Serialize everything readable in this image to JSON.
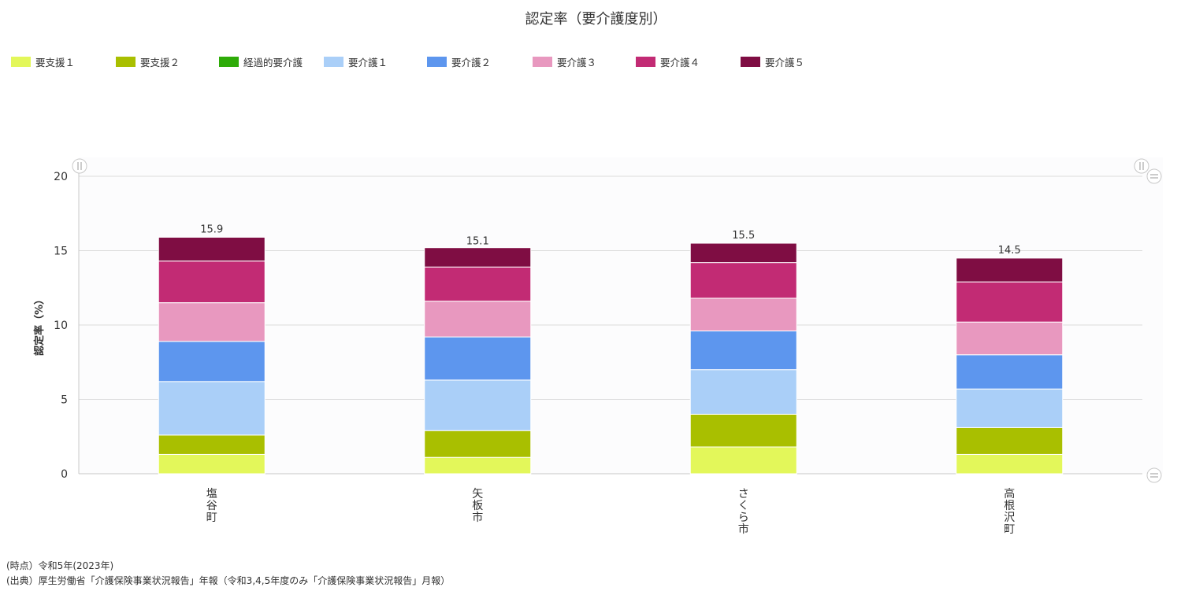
{
  "chart_data": {
    "type": "bar",
    "stacked": true,
    "title": "認定率（要介護度別）",
    "ylabel": "認定率（%）",
    "xlabel": "",
    "ylim": [
      0,
      20
    ],
    "yticks": [
      0,
      5,
      10,
      15,
      20
    ],
    "grid": true,
    "legend_position": "top-left",
    "categories": [
      "塩谷町",
      "矢板市",
      "さくら市",
      "高根沢町"
    ],
    "series": [
      {
        "name": "要支援１",
        "color": "#e3f75a",
        "values": [
          1.3,
          1.1,
          1.8,
          1.3
        ]
      },
      {
        "name": "要支援２",
        "color": "#a9bf00",
        "values": [
          1.3,
          1.8,
          2.2,
          1.8
        ]
      },
      {
        "name": "経過的要介護",
        "color": "#2eab08",
        "values": [
          0,
          0,
          0,
          0
        ]
      },
      {
        "name": "要介護１",
        "color": "#aacff8",
        "values": [
          3.6,
          3.4,
          3.0,
          2.6
        ]
      },
      {
        "name": "要介護２",
        "color": "#5d96ee",
        "values": [
          2.7,
          2.9,
          2.6,
          2.3
        ]
      },
      {
        "name": "要介護３",
        "color": "#e898bf",
        "values": [
          2.6,
          2.4,
          2.2,
          2.2
        ]
      },
      {
        "name": "要介護４",
        "color": "#c22b74",
        "values": [
          2.8,
          2.3,
          2.4,
          2.7
        ]
      },
      {
        "name": "要介護５",
        "color": "#7f0d43",
        "values": [
          1.6,
          1.3,
          1.3,
          1.6
        ]
      }
    ],
    "totals": [
      15.9,
      15.1,
      15.5,
      14.5
    ],
    "total_labels": [
      "15.9",
      "15.1",
      "15.5",
      "14.5"
    ]
  },
  "notes": {
    "time": "(時点）令和5年(2023年)",
    "source": "(出典）厚生労働省「介護保険事業状況報告」年報（令和3,4,5年度のみ「介護保険事業状況報告」月報）"
  }
}
